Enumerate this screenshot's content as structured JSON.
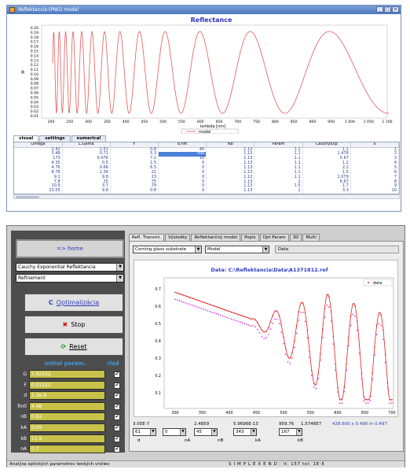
{
  "top_window": {
    "title": "Reflektancia (PNG) model",
    "chart_title": "Reflectance",
    "y_axis_label": "R",
    "x_axis_label": "lambda [nm]",
    "legend": "model",
    "y_ticks": [
      "0.20",
      "0.19",
      "0.18",
      "0.17",
      "0.16",
      "0.15",
      "0.14",
      "0.13",
      "0.12",
      "0.11",
      "0.10",
      "0.09",
      "0.08",
      "0.07",
      "0.06",
      "0.05",
      "0.04",
      "0.03",
      "0.02",
      "0.01"
    ],
    "x_ticks": [
      "200",
      "250",
      "300",
      "350",
      "400",
      "450",
      "500",
      "550",
      "600",
      "650",
      "700",
      "750",
      "800",
      "850",
      "900",
      "950",
      "1 000",
      "1 050",
      "1 100"
    ],
    "tabs": [
      "visual",
      "settings",
      "numerical"
    ],
    "table": {
      "headers": [
        "Omega",
        "L.Gama",
        "F",
        "d.nm",
        "Nb",
        "Param",
        "CauchyExp",
        "s"
      ],
      "rows": [
        [
          "2.42",
          "1.51",
          "0.8",
          "40",
          "1.12",
          "1.1",
          "1.1",
          "1"
        ],
        [
          "3.48",
          "0.71",
          "5.3",
          "500",
          "1.13",
          "1.1",
          "1.478",
          "2"
        ],
        [
          "173",
          "0.476",
          "7.2",
          "10",
          "1.13",
          "1.1",
          "5.67",
          "3"
        ],
        [
          "4.35",
          "0.5",
          "1.5",
          "0",
          "1.13",
          "1.1",
          "1.2",
          "4"
        ],
        [
          "4.76",
          "0.66",
          "6.5",
          "0",
          "1.13",
          "1.1",
          "2.2",
          "5"
        ],
        [
          "8.76",
          "1.36",
          "21",
          "0",
          "1.13",
          "1.1",
          "1.5",
          "6"
        ],
        [
          "9.1",
          "9.8",
          "23",
          "0",
          "1.12",
          "1.1",
          "1.079",
          "7"
        ],
        [
          "7.8",
          "25",
          "75",
          "5",
          "1.13",
          "2",
          "6.67",
          "8"
        ],
        [
          "10.9",
          "3.7",
          "79",
          "0",
          "1.13",
          "1.5",
          "1.7",
          "9"
        ],
        [
          "23.55",
          "9.8",
          "0.8",
          "0",
          "1.13",
          "1",
          "3.3",
          "10"
        ]
      ]
    }
  },
  "bottom_window": {
    "home_label": "=> home",
    "model_select": "Cauchy Exponential Reflektancia",
    "method_select": "Refinement",
    "optimize_label": "Optimalizácia",
    "stop_label": "Stop",
    "reset_label": "Reset",
    "param_header": "initial param.",
    "rlsd_header": "rlsd",
    "params": [
      {
        "name": "G",
        "value": "1.82222"
      },
      {
        "name": "F",
        "value": "0.01222"
      },
      {
        "name": "d",
        "value": "1.3e-6"
      },
      {
        "name": "Rn0",
        "value": "4.46"
      },
      {
        "name": "nB",
        "value": "0.82"
      },
      {
        "name": "kA",
        "value": "0.09"
      },
      {
        "name": "kB",
        "value": "11.9"
      },
      {
        "name": "nA",
        "value": "0.7"
      }
    ],
    "tabs": [
      "Refl. Transmi.",
      "Výsledky",
      "Reflektančný model",
      "Popis",
      "Opt Param",
      "3D",
      "Multi"
    ],
    "substrate_select": "Corning glass substrate",
    "model_combo": "Model",
    "data_button": "Data",
    "plot_title": "Data: C:\\Reflektancia\\Data\\A1371812.ref",
    "plot_legend": "data",
    "plot_y_ticks": [
      "0.7",
      "0.6",
      "0.5",
      "0.4",
      "0.3",
      "0.2",
      "0.1"
    ],
    "plot_x_ticks": [
      "300",
      "350",
      "400",
      "450",
      "500",
      "550",
      "600",
      "650",
      "700"
    ],
    "values_row": [
      "3.05E-7",
      "2.4859",
      "5.9696E-13",
      "959.76",
      "1.5746E7"
    ],
    "coord_readout": "428.600  x 0.490  m 0.497",
    "vbox_values": [
      "61",
      "0",
      "45",
      "343",
      "167"
    ],
    "vbox_labels": [
      "d",
      "nA",
      "nB",
      "kA",
      "kB"
    ],
    "status_left": "Analýza optických parametrov tenkých vrstiev",
    "status_right": "S I M P L E X   E N D :  it: 157  tol: 1E-5",
    "colors": {
      "param_box": "#c8c24a",
      "model_curve": "#e05a5a",
      "data_curve": "#d81fd8"
    }
  }
}
